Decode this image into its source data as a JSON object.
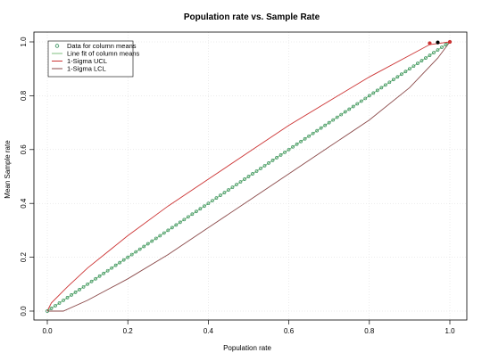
{
  "chart_data": {
    "type": "scatter",
    "title": "Population rate vs. Sample Rate",
    "xlabel": "Population rate",
    "ylabel": "Mean Sample rate",
    "xlim": [
      0,
      1
    ],
    "ylim": [
      0,
      1
    ],
    "x_ticks": [
      "0.0",
      "0.2",
      "0.4",
      "0.6",
      "0.8",
      "1.0"
    ],
    "y_ticks": [
      "0.0",
      "0.2",
      "0.4",
      "0.6",
      "0.8",
      "1.0"
    ],
    "grid": true,
    "legend_position": "top-left",
    "legend": [
      {
        "label": "Data for column means",
        "type": "circle",
        "color": "#2e8b57"
      },
      {
        "label": "Line fit of column means",
        "type": "line",
        "color": "#7fbf7f"
      },
      {
        "label": "1-Sigma UCL",
        "type": "line",
        "color": "#cc3333"
      },
      {
        "label": "1-Sigma LCL",
        "type": "line",
        "color": "#8b4a4a"
      }
    ],
    "series": [
      {
        "name": "Data for column means",
        "kind": "points",
        "color": "#2e8b57",
        "x_start": 0.0,
        "x_end": 1.0,
        "x_step": 0.01,
        "slope": 1.0,
        "intercept": 0.0
      },
      {
        "name": "Line fit of column means",
        "kind": "line",
        "color": "#7fbf7f",
        "x": [
          0.0,
          1.0
        ],
        "y": [
          0.0,
          1.0
        ]
      },
      {
        "name": "1-Sigma UCL",
        "kind": "line",
        "color": "#cc3333",
        "x": [
          0.0,
          0.01,
          0.05,
          0.1,
          0.2,
          0.3,
          0.4,
          0.5,
          0.6,
          0.7,
          0.8,
          0.9,
          0.95,
          1.0
        ],
        "y": [
          0.0,
          0.03,
          0.09,
          0.16,
          0.28,
          0.39,
          0.49,
          0.59,
          0.69,
          0.78,
          0.87,
          0.95,
          0.99,
          1.0
        ]
      },
      {
        "name": "1-Sigma LCL",
        "kind": "line",
        "color": "#8b4a4a",
        "x": [
          0.0,
          0.04,
          0.1,
          0.2,
          0.3,
          0.4,
          0.5,
          0.6,
          0.7,
          0.8,
          0.9,
          0.97,
          1.0
        ],
        "y": [
          0.0,
          0.0,
          0.04,
          0.12,
          0.21,
          0.31,
          0.41,
          0.51,
          0.61,
          0.71,
          0.83,
          0.94,
          1.0
        ]
      },
      {
        "name": "",
        "kind": "markers",
        "colors": [
          "#cc3333",
          "#000000",
          "#cc3333"
        ],
        "x": [
          0.95,
          0.97,
          1.0
        ],
        "y": [
          0.995,
          0.998,
          1.0
        ]
      }
    ]
  }
}
